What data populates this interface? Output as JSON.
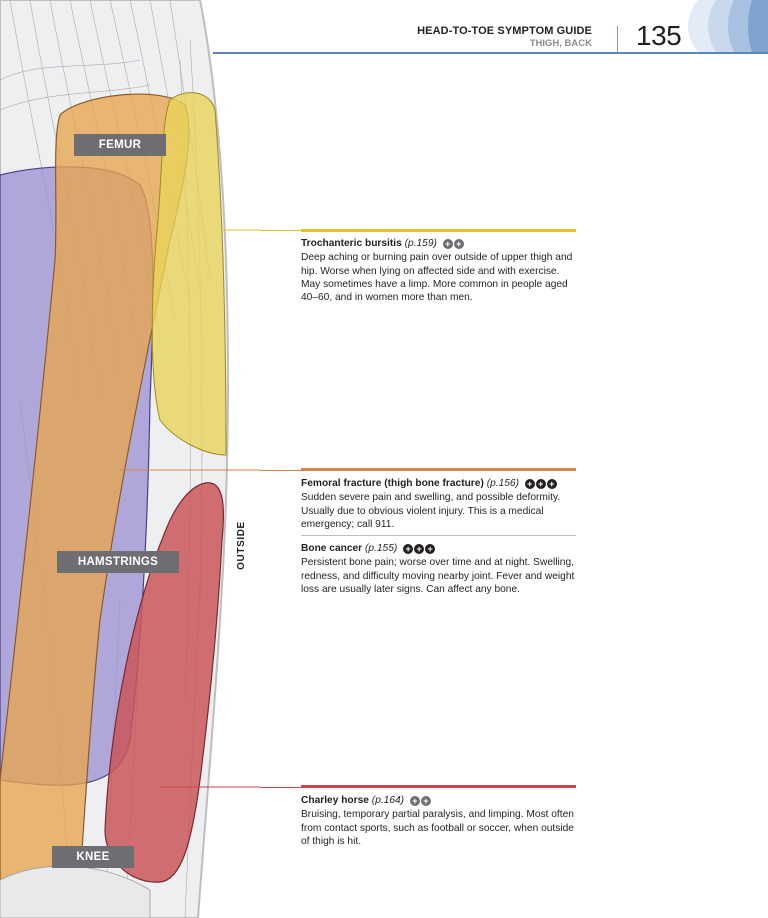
{
  "header": {
    "title": "HEAD-TO-TOE SYMPTOM GUIDE",
    "subtitle": "THIGH, BACK",
    "page_number": "135"
  },
  "labels": {
    "femur": "FEMUR",
    "hamstrings": "HAMSTRINGS",
    "knee": "KNEE",
    "outside": "OUTSIDE"
  },
  "entries": [
    {
      "title": "Trochanteric bursitis",
      "page_ref": "(p.159)",
      "severity": 2,
      "icon": "plus-circle-icon",
      "body": "Deep aching or burning pain over outside of upper thigh and hip. Worse when lying on affected side and with exercise. May sometimes have a limp. More common in people aged 40–60, and in women more than men.",
      "color": "#e5c22a"
    },
    {
      "title": "Femoral fracture (thigh bone fracture)",
      "page_ref": "(p.156)",
      "severity": 3,
      "icon": "plus-circle-icon",
      "body": "Sudden severe pain and swelling, and possible deformity. Usually due to obvious violent injury. This is a medical emergency; call 911.",
      "color": "#d9834c"
    },
    {
      "title": "Bone cancer",
      "page_ref": "(p.155)",
      "severity": 3,
      "icon": "plus-circle-icon",
      "body": "Persistent bone pain; worse over time and at night. Swelling, redness, and difficulty moving nearby joint. Fever and weight loss are usually later signs. Can affect any bone.",
      "color": "#bcbec0"
    },
    {
      "title": "Charley horse",
      "page_ref": "(p.164)",
      "severity": 2,
      "icon": "plus-circle-icon",
      "body": "Bruising, temporary partial paralysis, and limping. Most often from contact sports, such as football or soccer, when outside of thigh is hit.",
      "color": "#c9464a"
    }
  ],
  "colors": {
    "accent_blue": "#5b86b8",
    "femur": "#e8a450",
    "hamstrings": "#9a8fd1",
    "bursitis": "#e8d35a",
    "charley_horse": "#c9565a"
  }
}
